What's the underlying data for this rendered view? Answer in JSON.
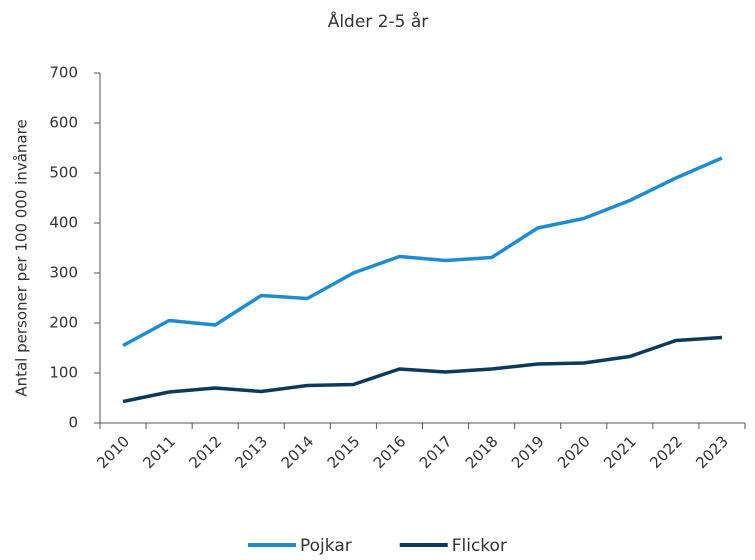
{
  "chart_data": {
    "type": "line",
    "title": "Ålder 2-5 år",
    "ylabel": "Antal personer per 100 000 invånare",
    "categories": [
      "2010",
      "2011",
      "2012",
      "2013",
      "2014",
      "2015",
      "2016",
      "2017",
      "2018",
      "2019",
      "2020",
      "2021",
      "2022",
      "2023"
    ],
    "series": [
      {
        "name": "Pojkar",
        "color": "#1f8ccf",
        "values": [
          155,
          205,
          196,
          255,
          249,
          300,
          333,
          325,
          331,
          390,
          409,
          445,
          490,
          530
        ]
      },
      {
        "name": "Flickor",
        "color": "#0d3a5c",
        "values": [
          43,
          62,
          70,
          63,
          75,
          77,
          108,
          102,
          108,
          118,
          120,
          133,
          165,
          171
        ]
      }
    ],
    "ylim": [
      0,
      700
    ],
    "yticks": [
      0,
      100,
      200,
      300,
      400,
      500,
      600,
      700
    ],
    "grid": false,
    "legend": "bottom"
  }
}
